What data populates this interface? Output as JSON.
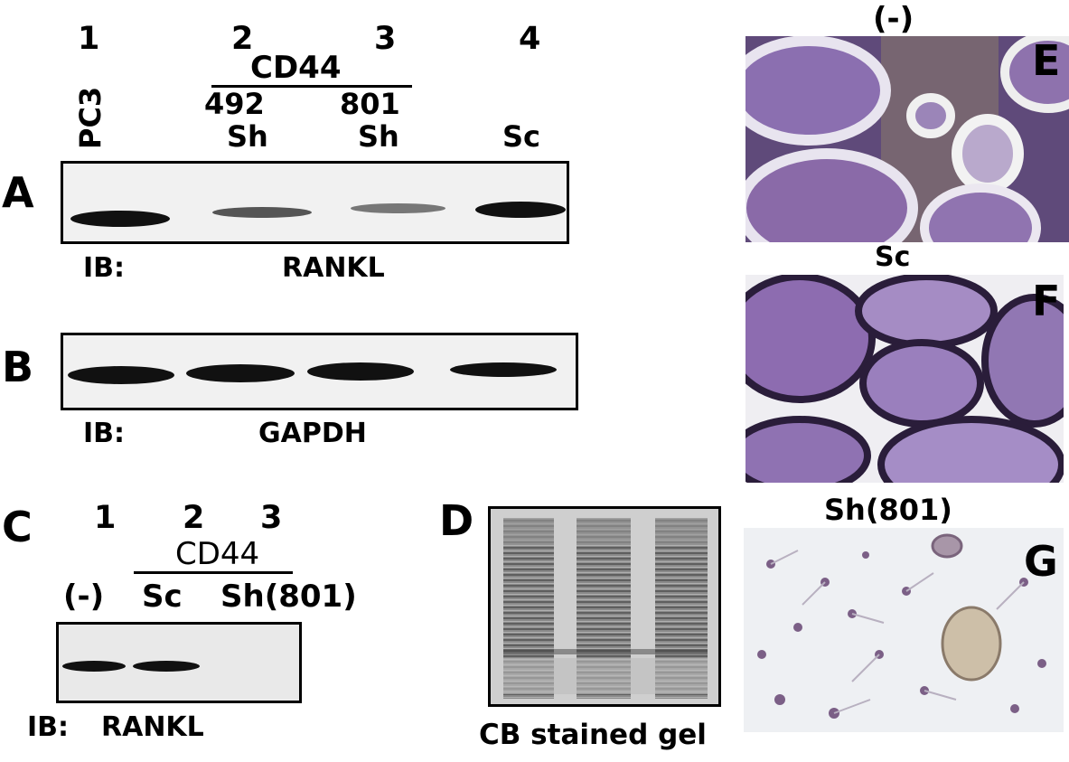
{
  "figure": {
    "panel_letters": [
      "A",
      "B",
      "C",
      "D",
      "E",
      "F",
      "G"
    ],
    "top_blot": {
      "lane_numbers": [
        "1",
        "2",
        "3",
        "4"
      ],
      "group_label": "CD44",
      "clone_labels": [
        "492",
        "801"
      ],
      "lane_labels": [
        "PC3",
        "Sh",
        "Sh",
        "Sc"
      ],
      "ib_prefix": "IB:",
      "rankl_antibody": "RANKL",
      "gapdh_antibody": "GAPDH"
    },
    "panel_c": {
      "lane_numbers": [
        "1",
        "2",
        "3"
      ],
      "group_label": "CD44",
      "lane_labels": [
        "(-)",
        "Sc",
        "Sh(801)"
      ],
      "ib_prefix": "IB:",
      "antibody": "RANKL"
    },
    "panel_d": {
      "caption": "CB stained gel"
    },
    "micrographs": {
      "e_title": "(-)",
      "f_title": "Sc",
      "g_title": "Sh(801)"
    }
  }
}
